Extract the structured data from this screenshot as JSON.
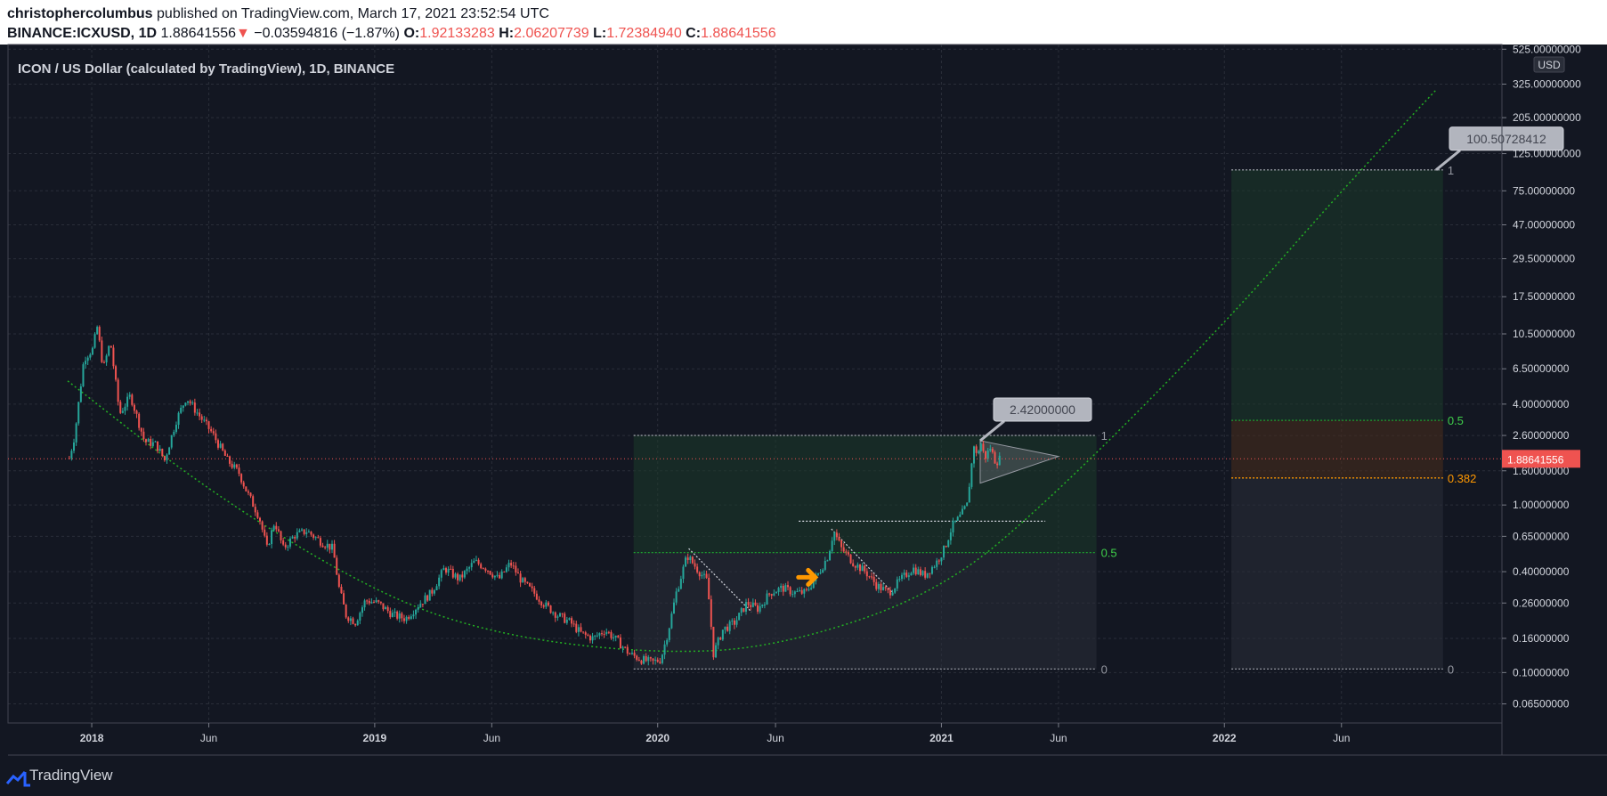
{
  "header": {
    "author": "christophercolumbus",
    "published_text": "published on TradingView.com, March 17, 2021 23:52:54 UTC",
    "symbol": "BINANCE:ICXUSD, 1D",
    "last": "1.88641556",
    "change_arrow": "▼",
    "change": "−0.03594816 (−1.87%)",
    "o_label": "O:",
    "o_value": "1.92133283",
    "h_label": "H:",
    "h_value": "2.06207739",
    "l_label": "L:",
    "l_value": "1.72384940",
    "c_label": "C:",
    "c_value": "1.88641556"
  },
  "footer": {
    "brand": "TradingView"
  },
  "colors": {
    "background": "#131722",
    "up": "#26a69a",
    "down": "#ef5350",
    "fib_green": "#1e9e30",
    "fib_orange": "#ff9800",
    "curve": "#23b023",
    "price_line": "#ef5350"
  },
  "chart_data": {
    "type": "candlestick",
    "title": "ICON / US Dollar (calculated by TradingView), 1D, BINANCE",
    "currency": "USD",
    "y_scale": "log",
    "y_ticks": [
      "525.00000000",
      "325.00000000",
      "205.00000000",
      "125.00000000",
      "75.00000000",
      "47.00000000",
      "29.50000000",
      "17.50000000",
      "10.50000000",
      "6.50000000",
      "4.00000000",
      "2.60000000",
      "1.60000000",
      "1.00000000",
      "0.65000000",
      "0.40000000",
      "0.26000000",
      "0.16000000",
      "0.10000000",
      "0.06500000"
    ],
    "x_ticks": [
      "2018",
      "Jun",
      "2019",
      "Jun",
      "2020",
      "Jun",
      "2021",
      "Jun",
      "2022",
      "Jun"
    ],
    "x_ticks_bold": [
      "2018",
      "2019",
      "2020",
      "2021",
      "2022"
    ],
    "x_range": [
      "2017-09-15",
      "2022-12-25"
    ],
    "y_range": [
      0.05,
      560
    ],
    "last_price_label": "1.88641556",
    "price_path": [
      [
        "2017-12-03",
        1.9
      ],
      [
        "2017-12-10",
        2.6
      ],
      [
        "2017-12-22",
        7.5
      ],
      [
        "2018-01-02",
        8.5
      ],
      [
        "2018-01-08",
        11.5
      ],
      [
        "2018-01-16",
        6.5
      ],
      [
        "2018-01-25",
        9.5
      ],
      [
        "2018-02-06",
        3.5
      ],
      [
        "2018-02-20",
        4.5
      ],
      [
        "2018-03-10",
        2.4
      ],
      [
        "2018-03-25",
        2.3
      ],
      [
        "2018-04-05",
        1.85
      ],
      [
        "2018-04-20",
        3.2
      ],
      [
        "2018-05-03",
        4.4
      ],
      [
        "2018-05-20",
        3.4
      ],
      [
        "2018-06-05",
        2.7
      ],
      [
        "2018-06-25",
        1.85
      ],
      [
        "2018-07-10",
        1.55
      ],
      [
        "2018-07-20",
        1.2
      ],
      [
        "2018-08-05",
        0.85
      ],
      [
        "2018-08-15",
        0.55
      ],
      [
        "2018-08-25",
        0.8
      ],
      [
        "2018-09-05",
        0.55
      ],
      [
        "2018-09-20",
        0.66
      ],
      [
        "2018-10-05",
        0.7
      ],
      [
        "2018-10-25",
        0.6
      ],
      [
        "2018-11-08",
        0.55
      ],
      [
        "2018-11-16",
        0.32
      ],
      [
        "2018-11-25",
        0.22
      ],
      [
        "2018-12-07",
        0.2
      ],
      [
        "2018-12-20",
        0.27
      ],
      [
        "2019-01-05",
        0.26
      ],
      [
        "2019-01-25",
        0.22
      ],
      [
        "2019-02-10",
        0.21
      ],
      [
        "2019-02-25",
        0.25
      ],
      [
        "2019-03-15",
        0.3
      ],
      [
        "2019-04-01",
        0.42
      ],
      [
        "2019-04-20",
        0.36
      ],
      [
        "2019-05-10",
        0.46
      ],
      [
        "2019-05-25",
        0.42
      ],
      [
        "2019-06-10",
        0.36
      ],
      [
        "2019-06-25",
        0.45
      ],
      [
        "2019-07-10",
        0.35
      ],
      [
        "2019-07-25",
        0.3
      ],
      [
        "2019-08-10",
        0.25
      ],
      [
        "2019-08-25",
        0.22
      ],
      [
        "2019-09-10",
        0.2
      ],
      [
        "2019-09-25",
        0.17
      ],
      [
        "2019-10-10",
        0.16
      ],
      [
        "2019-10-25",
        0.18
      ],
      [
        "2019-11-10",
        0.155
      ],
      [
        "2019-11-25",
        0.13
      ],
      [
        "2019-12-10",
        0.12
      ],
      [
        "2019-12-25",
        0.115
      ],
      [
        "2020-01-05",
        0.12
      ],
      [
        "2020-01-15",
        0.18
      ],
      [
        "2020-01-25",
        0.3
      ],
      [
        "2020-02-08",
        0.5
      ],
      [
        "2020-02-20",
        0.42
      ],
      [
        "2020-03-05",
        0.35
      ],
      [
        "2020-03-13",
        0.13
      ],
      [
        "2020-03-25",
        0.18
      ],
      [
        "2020-04-10",
        0.2
      ],
      [
        "2020-04-25",
        0.26
      ],
      [
        "2020-05-10",
        0.24
      ],
      [
        "2020-05-25",
        0.3
      ],
      [
        "2020-06-10",
        0.32
      ],
      [
        "2020-06-25",
        0.3
      ],
      [
        "2020-07-10",
        0.3
      ],
      [
        "2020-07-25",
        0.38
      ],
      [
        "2020-08-08",
        0.5
      ],
      [
        "2020-08-15",
        0.7
      ],
      [
        "2020-08-25",
        0.55
      ],
      [
        "2020-09-10",
        0.45
      ],
      [
        "2020-09-25",
        0.4
      ],
      [
        "2020-10-10",
        0.33
      ],
      [
        "2020-10-25",
        0.3
      ],
      [
        "2020-11-10",
        0.36
      ],
      [
        "2020-11-25",
        0.42
      ],
      [
        "2020-12-10",
        0.38
      ],
      [
        "2020-12-25",
        0.45
      ],
      [
        "2021-01-05",
        0.55
      ],
      [
        "2021-01-15",
        0.75
      ],
      [
        "2021-01-25",
        0.85
      ],
      [
        "2021-02-03",
        1.0
      ],
      [
        "2021-02-08",
        1.6
      ],
      [
        "2021-02-12",
        2.3
      ],
      [
        "2021-02-16",
        1.9
      ],
      [
        "2021-02-20",
        2.42
      ],
      [
        "2021-02-26",
        1.9
      ],
      [
        "2021-03-05",
        2.2
      ],
      [
        "2021-03-12",
        1.8
      ],
      [
        "2021-03-17",
        1.886
      ]
    ],
    "dotted_curve_points": [
      [
        "2017-12-01",
        5.5
      ],
      [
        "2018-06-01",
        1.2
      ],
      [
        "2019-01-01",
        0.3
      ],
      [
        "2019-06-01",
        0.17
      ],
      [
        "2019-12-15",
        0.13
      ],
      [
        "2020-06-01",
        0.14
      ],
      [
        "2020-12-31",
        0.3
      ],
      [
        "2021-06-01",
        1.2
      ],
      [
        "2022-01-01",
        12.0
      ],
      [
        "2022-06-01",
        75.0
      ],
      [
        "2022-10-01",
        300.0
      ]
    ],
    "triangle_pattern": [
      [
        "2021-02-20",
        2.42
      ],
      [
        "2021-02-20",
        1.35
      ],
      [
        "2021-06-01",
        1.95
      ]
    ],
    "horizontal_level": {
      "from": "2020-07-01",
      "to": "2021-05-15",
      "value": 0.8
    },
    "fib_zones": [
      {
        "from": "2019-12-01",
        "to": "2021-07-20",
        "label_at": "2021-07-20",
        "levels": [
          {
            "ratio": "1",
            "value": 2.6,
            "label": "1"
          },
          {
            "ratio": "0.5",
            "value": 0.52,
            "label": "0.5"
          },
          {
            "ratio": "0",
            "value": 0.105,
            "label": "0"
          }
        ]
      },
      {
        "from": "2022-01-10",
        "to": "2022-10-10",
        "label_at": "2022-10-10",
        "levels": [
          {
            "ratio": "1",
            "value": 100,
            "label": "1"
          },
          {
            "ratio": "0.5",
            "value": 3.2,
            "label": "0.5"
          },
          {
            "ratio": "0.382",
            "value": 1.45,
            "label": "0.382"
          },
          {
            "ratio": "0",
            "value": 0.105,
            "label": "0"
          }
        ]
      }
    ],
    "callouts": [
      {
        "label": "2.42000000",
        "date": "2021-02-20",
        "value": 2.42
      },
      {
        "label": "100.50728412",
        "date": "2022-10-01",
        "value": 100
      }
    ],
    "orange_arrow": {
      "date": "2020-07-12",
      "value": 0.37
    },
    "diagonal_trendlines": [
      [
        [
          "2020-02-10",
          0.55
        ],
        [
          "2020-05-01",
          0.23
        ]
      ],
      [
        [
          "2020-08-12",
          0.72
        ],
        [
          "2020-10-30",
          0.3
        ]
      ]
    ]
  }
}
